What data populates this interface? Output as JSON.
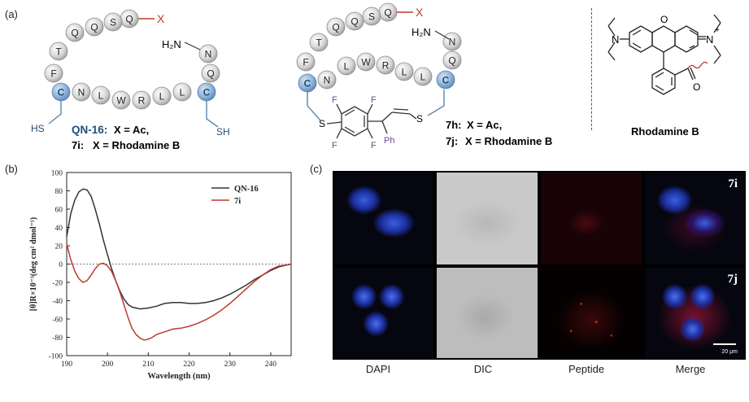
{
  "panels": {
    "a": "(a)",
    "b": "(b)",
    "c": "(c)"
  },
  "peptide1": {
    "beads": [
      "Q",
      "S",
      "Q",
      "Q",
      "T",
      "F",
      "C",
      "N",
      "L",
      "W",
      "R",
      "L",
      "L",
      "C",
      "Q",
      "N"
    ],
    "x_label": "X",
    "nh2_label": "H₂N",
    "sh_left": "HS",
    "sh_right": "SH",
    "name1": "QN-16:",
    "name1_eq": "X = Ac,",
    "name2": "7i:",
    "name2_eq": "X = Rhodamine B"
  },
  "peptide2": {
    "beads": [
      "Q",
      "S",
      "Q",
      "Q",
      "T",
      "F",
      "C",
      "N",
      "L",
      "W",
      "R",
      "L",
      "L",
      "C",
      "Q",
      "N"
    ],
    "x_label": "X",
    "nh2_label": "H₂N",
    "s_left": "S",
    "s_right": "S",
    "f_labels": [
      "F",
      "F",
      "F",
      "F"
    ],
    "ph_label": "Ph",
    "name1": "7h:",
    "name1_eq": "X = Ac,",
    "name2": "7j:",
    "name2_eq": "X = Rhodamine B"
  },
  "rhodamine": {
    "title": "Rhodamine B",
    "n_left": "N",
    "n_right": "N",
    "plus": "+",
    "o_ring": "O",
    "o_carbonyl": "O"
  },
  "chart_data": {
    "type": "line",
    "xlabel": "Wavelength (nm)",
    "ylabel": "[θ]R×10⁻³(deg cm² dmol⁻¹)",
    "xlim": [
      190,
      245
    ],
    "ylim": [
      -100,
      100
    ],
    "xticks": [
      190,
      200,
      210,
      220,
      230,
      240
    ],
    "yticks": [
      100,
      80,
      60,
      40,
      20,
      0,
      -20,
      -40,
      -60,
      -80,
      -100
    ],
    "legend_position": "top-right",
    "zero_line": "dotted",
    "series": [
      {
        "name": "QN-16",
        "color": "#333333",
        "x": [
          190,
          191,
          192,
          193,
          194,
          195,
          196,
          197,
          198,
          199,
          200,
          201,
          202,
          203,
          204,
          205,
          206,
          207,
          208,
          210,
          212,
          214,
          216,
          218,
          220,
          222,
          224,
          226,
          228,
          230,
          232,
          234,
          236,
          238,
          240,
          242,
          244,
          245
        ],
        "y": [
          30,
          55,
          70,
          79,
          82,
          81,
          74,
          60,
          44,
          26,
          10,
          -5,
          -18,
          -29,
          -38,
          -44,
          -47,
          -48,
          -49,
          -48,
          -46,
          -43,
          -42,
          -42,
          -43,
          -43,
          -42,
          -40,
          -37,
          -33,
          -28,
          -23,
          -17,
          -12,
          -7,
          -3,
          -1,
          0
        ]
      },
      {
        "name": "7i",
        "color": "#c0392b",
        "x": [
          190,
          191,
          192,
          193,
          194,
          195,
          196,
          197,
          198,
          199,
          200,
          201,
          202,
          203,
          204,
          205,
          206,
          207,
          208,
          209,
          210,
          211,
          212,
          214,
          216,
          218,
          220,
          222,
          224,
          226,
          228,
          230,
          232,
          234,
          236,
          238,
          240,
          242,
          244,
          245
        ],
        "y": [
          22,
          5,
          -8,
          -16,
          -20,
          -18,
          -12,
          -5,
          0,
          1,
          -2,
          -8,
          -18,
          -30,
          -44,
          -58,
          -70,
          -77,
          -81,
          -83,
          -82,
          -80,
          -77,
          -74,
          -71,
          -70,
          -68,
          -65,
          -61,
          -56,
          -50,
          -43,
          -35,
          -27,
          -19,
          -12,
          -6,
          -2,
          -1,
          0
        ]
      }
    ]
  },
  "microscopy": {
    "columns": [
      "DAPI",
      "DIC",
      "Peptide",
      "Merge"
    ],
    "row_labels": [
      "7i",
      "7j"
    ],
    "scale_bar": "20 μm"
  }
}
